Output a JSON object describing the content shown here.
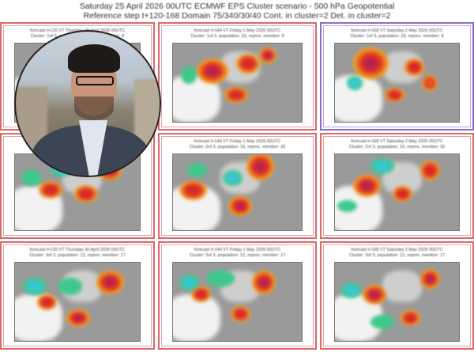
{
  "header": {
    "line1": "Saturday 25 April 2026 00UTC ECMWF EPS Cluster scenario - 500 hPa Geopotential",
    "line2": "Reference step t+120-168 Domain 75/340/30/40 Cont. in cluster=2 Det. in cluster=2"
  },
  "panels": [
    {
      "forecast": "forecast t+120 VT Thursday 30 April 2026 00UTC",
      "cluster": "Cluster: 1of 3, population: 23, repres. member: 8"
    },
    {
      "forecast": "forecast t+144 VT Friday 1 May 2026 00UTC",
      "cluster": "Cluster: 1of 3, population: 23, repres. member: 8"
    },
    {
      "forecast": "forecast t+168 VT Saturday 2 May 2026 00UTC",
      "cluster": "Cluster: 1of 3, population: 23, repres. member: 8"
    },
    {
      "forecast": "forecast t+120 VT Thursday 30 April 2026 00UTC",
      "cluster": "Cluster: 2of 3, population: 16, repres. member: 32"
    },
    {
      "forecast": "forecast t+144 VT Friday 1 May 2026 00UTC",
      "cluster": "Cluster: 2of 3, population: 16, repres. member: 32"
    },
    {
      "forecast": "forecast t+168 VT Saturday 2 May 2026 00UTC",
      "cluster": "Cluster: 2of 3, population: 16, repres. member: 32"
    },
    {
      "forecast": "forecast t+120 VT Thursday 30 April 2026 00UTC",
      "cluster": "Cluster: 3of 3, population: 12, repres. member: 17"
    },
    {
      "forecast": "forecast t+144 VT Friday 1 May 2026 00UTC",
      "cluster": "Cluster: 3of 3, population: 12, repres. member: 17"
    },
    {
      "forecast": "forecast t+168 VT Saturday 2 May 2026 00UTC",
      "cluster": "Cluster: 3of 3, population: 12, repres. member: 17"
    }
  ],
  "colors": {
    "positive_anomaly": "#d92a2a",
    "strong_positive": "#a0206a",
    "moderate": "#f08a1a",
    "weak": "#f3e13a",
    "negative": "#3ec98a",
    "strong_negative": "#39c6d8",
    "border": "#d9696b",
    "selected_border": "#8c6cc9"
  }
}
